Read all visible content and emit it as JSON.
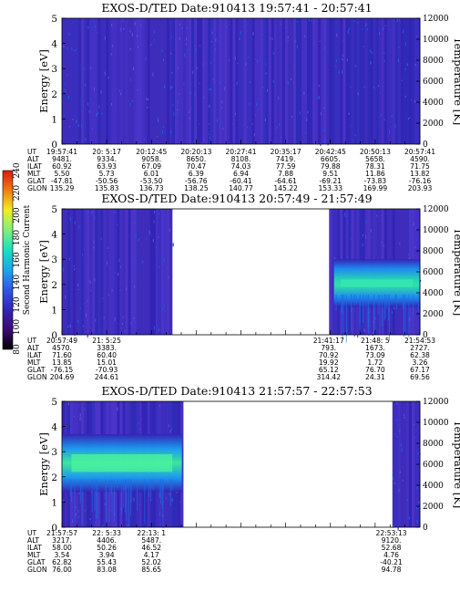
{
  "chart_data": [
    {
      "type": "heatmap",
      "title": "EXOS-D/TED   Date:910413   19:57:41 - 20:57:41",
      "ylabel": "Energy [eV]",
      "y2label": "Temperature [K]",
      "ylim": [
        0,
        5
      ],
      "yticks": [
        "0",
        "1",
        "2",
        "3",
        "4",
        "5"
      ],
      "y2lim": [
        0,
        12000
      ],
      "y2ticks": [
        "0",
        "2000",
        "4000",
        "6000",
        "8000",
        "10000",
        "12000"
      ],
      "gaps": [],
      "features": [],
      "ephemeris": {
        "labels": [
          "UT",
          "ALT",
          "ILAT",
          "MLT",
          "GLAT",
          "GLON"
        ],
        "columns": [
          {
            "pos": 0.0,
            "values": [
              "19:57:41",
              "9481.",
              "60.92",
              "5.50",
              "-47.81",
              "135.29"
            ]
          },
          {
            "pos": 0.125,
            "values": [
              "20: 5:17",
              "9334.",
              "63.93",
              "5.73",
              "-50.56",
              "135.83"
            ]
          },
          {
            "pos": 0.25,
            "values": [
              "20:12:45",
              "9058.",
              "67.09",
              "6.01",
              "-53.50",
              "136.73"
            ]
          },
          {
            "pos": 0.375,
            "values": [
              "20:20:13",
              "8650.",
              "70.47",
              "6.39",
              "-56.76",
              "138.25"
            ]
          },
          {
            "pos": 0.5,
            "values": [
              "20:27:41",
              "8108.",
              "74.03",
              "6.94",
              "-60.41",
              "140.77"
            ]
          },
          {
            "pos": 0.625,
            "values": [
              "20:35:17",
              "7419.",
              "77.59",
              "7.88",
              "-64.61",
              "145.22"
            ]
          },
          {
            "pos": 0.75,
            "values": [
              "20:42:45",
              "6605.",
              "79.88",
              "9.51",
              "-69.21",
              "153.33"
            ]
          },
          {
            "pos": 0.875,
            "values": [
              "20:50:13",
              "5658.",
              "78.31",
              "11.86",
              "-73.83",
              "169.99"
            ]
          },
          {
            "pos": 1.0,
            "values": [
              "20:57:41",
              "4590.",
              "71.75",
              "13.82",
              "-76.16",
              "203.93"
            ]
          }
        ]
      }
    },
    {
      "type": "heatmap",
      "title": "EXOS-D/TED   Date:910413   20:57:49 - 21:57:49",
      "ylabel": "Energy [eV]",
      "y2label": "Temperature [K]",
      "ylim": [
        0,
        5
      ],
      "yticks": [
        "0",
        "1",
        "2",
        "3",
        "4",
        "5"
      ],
      "y2lim": [
        0,
        12000
      ],
      "y2ticks": [
        "0",
        "2000",
        "4000",
        "6000",
        "8000",
        "10000",
        "12000"
      ],
      "gaps": [
        [
          0.31,
          0.745
        ]
      ],
      "features": [
        {
          "kind": "band",
          "x": [
            0.76,
            1.0
          ],
          "y": [
            1.9,
            2.2
          ],
          "intensity": "high"
        }
      ],
      "ephemeris": {
        "labels": [
          "UT",
          "ALT",
          "ILAT",
          "MLT",
          "GLAT",
          "GLON"
        ],
        "columns": [
          {
            "pos": 0.0,
            "values": [
              "20:57:49",
              "4570.",
              "71.60",
              "13.85",
              "-76.15",
              "204.69"
            ]
          },
          {
            "pos": 0.125,
            "values": [
              "21: 5:25",
              "3383.",
              "60.40",
              "15.01",
              "-70.93",
              "244.61"
            ]
          },
          {
            "pos": 0.745,
            "values": [
              "21:41:17",
              "793.",
              "70.92",
              "19.92",
              "65.12",
              "314.42"
            ]
          },
          {
            "pos": 0.875,
            "values": [
              "21:48: 5",
              "1673.",
              "73.09",
              "1.72",
              "76.70",
              "24.31"
            ]
          },
          {
            "pos": 1.0,
            "values": [
              "21:54:53",
              "2727.",
              "62.38",
              "3.26",
              "67.17",
              "69.56"
            ]
          }
        ]
      }
    },
    {
      "type": "heatmap",
      "title": "EXOS-D/TED   Date:910413   21:57:57 - 22:57:53",
      "ylabel": "Energy [eV]",
      "y2label": "Temperature [K]",
      "ylim": [
        0,
        5
      ],
      "yticks": [
        "0",
        "1",
        "2",
        "3",
        "4",
        "5"
      ],
      "y2lim": [
        0,
        12000
      ],
      "y2ticks": [
        "0",
        "2000",
        "4000",
        "6000",
        "8000",
        "10000",
        "12000"
      ],
      "gaps": [
        [
          0.335,
          0.92
        ]
      ],
      "features": [
        {
          "kind": "band",
          "x": [
            0.0,
            0.335
          ],
          "y": [
            2.2,
            2.9
          ],
          "intensity": "high"
        }
      ],
      "ephemeris": {
        "labels": [
          "UT",
          "ALT",
          "ILAT",
          "MLT",
          "GLAT",
          "GLON"
        ],
        "columns": [
          {
            "pos": 0.0,
            "values": [
              "21:57:57",
              "3217.",
              "58.00",
              "3.54",
              "62.82",
              "76.00"
            ]
          },
          {
            "pos": 0.125,
            "values": [
              "22: 5:33",
              "4406.",
              "50.26",
              "3.94",
              "55.43",
              "83.08"
            ]
          },
          {
            "pos": 0.25,
            "values": [
              "22:13: 1",
              "5487.",
              "46.52",
              "4.17",
              "52.02",
              "85.65"
            ]
          },
          {
            "pos": 0.92,
            "values": [
              "22:53:13",
              "9120.",
              "52.68",
              "4.76",
              "-40.21",
              "94.78"
            ]
          }
        ]
      }
    }
  ],
  "colorbar": {
    "label": "Second Harmonic Current",
    "ticks": [
      "80",
      "100",
      "120",
      "140",
      "160",
      "180",
      "200",
      "220",
      "240"
    ],
    "range": [
      80,
      240
    ],
    "colors": [
      "#000000",
      "#3c0a78",
      "#3424b8",
      "#2f56e6",
      "#1aa6ee",
      "#19e0c2",
      "#7ef07a",
      "#f2ee22",
      "#f57a12",
      "#d81a10"
    ]
  }
}
